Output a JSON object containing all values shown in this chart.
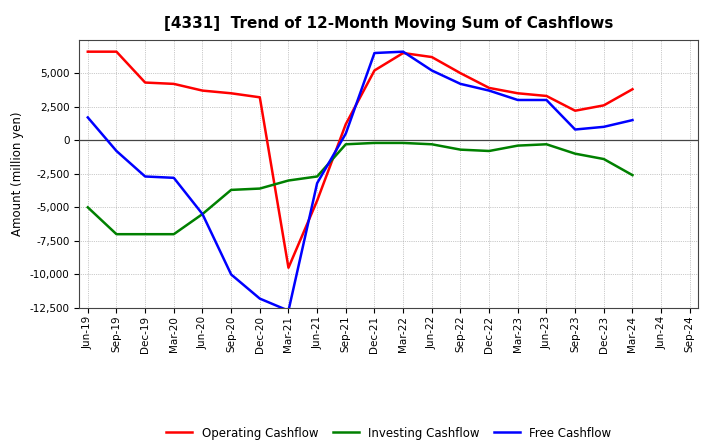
{
  "title": "[4331]  Trend of 12-Month Moving Sum of Cashflows",
  "ylabel": "Amount (million yen)",
  "x_labels": [
    "Jun-19",
    "Sep-19",
    "Dec-19",
    "Mar-20",
    "Jun-20",
    "Sep-20",
    "Dec-20",
    "Mar-21",
    "Jun-21",
    "Sep-21",
    "Dec-21",
    "Mar-22",
    "Jun-22",
    "Sep-22",
    "Dec-22",
    "Mar-23",
    "Jun-23",
    "Sep-23",
    "Dec-23",
    "Mar-24",
    "Jun-24",
    "Sep-24"
  ],
  "operating": [
    6600,
    6600,
    4300,
    4200,
    3700,
    3500,
    3200,
    -9500,
    -4500,
    1200,
    5200,
    6500,
    6200,
    5000,
    3900,
    3500,
    3300,
    2200,
    2600,
    3800,
    null,
    null
  ],
  "investing": [
    -5000,
    -7000,
    -7000,
    -7000,
    -5500,
    -3700,
    -3600,
    -3000,
    -2700,
    -300,
    -200,
    -200,
    -300,
    -700,
    -800,
    -400,
    -300,
    -1000,
    -1400,
    -2600,
    null,
    null
  ],
  "free": [
    1700,
    -800,
    -2700,
    -2800,
    -5500,
    -10000,
    -11800,
    -12700,
    -3200,
    500,
    6500,
    6600,
    5200,
    4200,
    3700,
    3000,
    3000,
    800,
    1000,
    1500,
    null,
    null
  ],
  "operating_color": "#ff0000",
  "investing_color": "#008000",
  "free_color": "#0000ff",
  "ylim": [
    -12500,
    7500
  ],
  "yticks": [
    -12500,
    -10000,
    -7500,
    -5000,
    -2500,
    0,
    2500,
    5000
  ],
  "bg_color": "#ffffff",
  "grid_color": "#999999",
  "line_width": 1.8,
  "title_fontsize": 11,
  "tick_fontsize": 7.5,
  "ylabel_fontsize": 8.5,
  "legend_fontsize": 8.5
}
